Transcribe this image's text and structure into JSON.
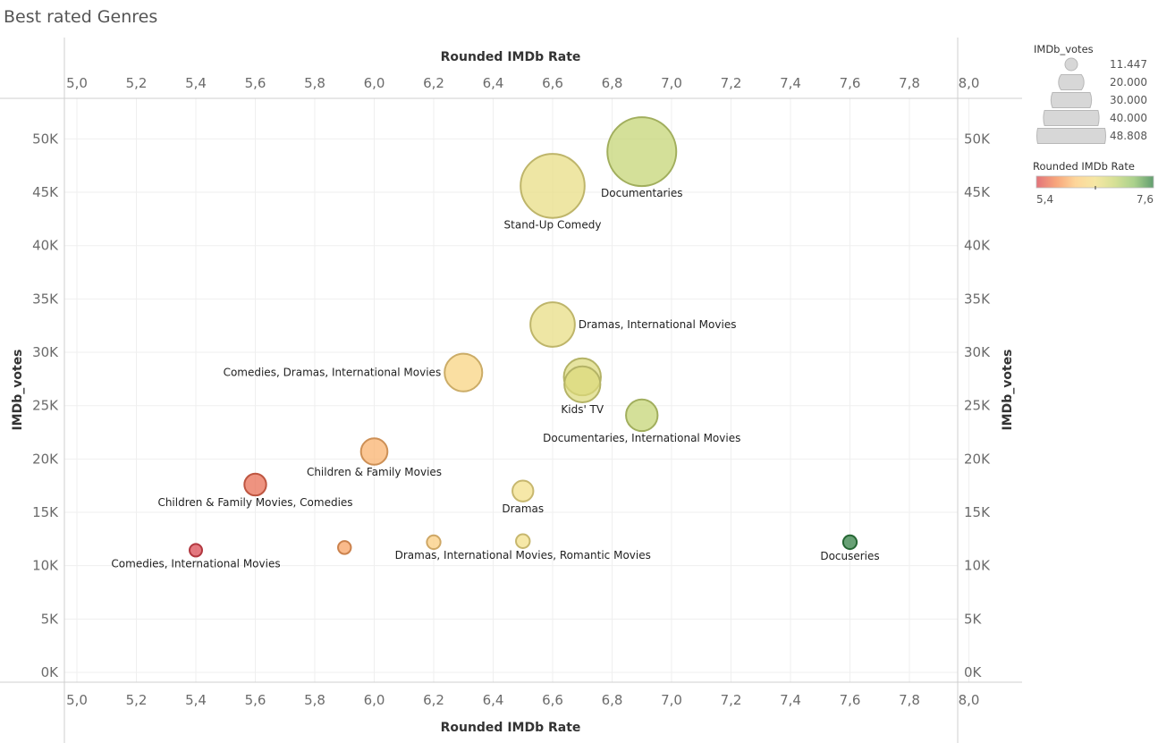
{
  "title": "Best rated Genres",
  "chart_data": {
    "type": "scatter",
    "title": "Best rated Genres",
    "xlabel": "Rounded IMDb Rate",
    "ylabel": "IMDb_votes",
    "xlim": [
      5.0,
      8.0
    ],
    "ylim": [
      0,
      55000
    ],
    "x_ticks": [
      "5,0",
      "5,2",
      "5,4",
      "5,6",
      "5,8",
      "6,0",
      "6,2",
      "6,4",
      "6,6",
      "6,8",
      "7,0",
      "7,2",
      "7,4",
      "7,6",
      "7,8",
      "8,0"
    ],
    "x_tick_values": [
      5.0,
      5.2,
      5.4,
      5.6,
      5.8,
      6.0,
      6.2,
      6.4,
      6.6,
      6.8,
      7.0,
      7.2,
      7.4,
      7.6,
      7.8,
      8.0
    ],
    "y_ticks": [
      "0K",
      "5K",
      "10K",
      "15K",
      "20K",
      "25K",
      "30K",
      "35K",
      "40K",
      "45K",
      "50K"
    ],
    "y_tick_values": [
      0,
      5000,
      10000,
      15000,
      20000,
      25000,
      30000,
      35000,
      40000,
      45000,
      50000
    ],
    "points": [
      {
        "label": "Documentaries",
        "rate": 6.9,
        "votes": 48808
      },
      {
        "label": "Stand-Up Comedy",
        "rate": 6.6,
        "votes": 45600
      },
      {
        "label": "Dramas, International Movies",
        "rate": 6.6,
        "votes": 32600
      },
      {
        "label": "Comedies, Dramas, International Movies",
        "rate": 6.3,
        "votes": 28100
      },
      {
        "label": "",
        "rate": 6.7,
        "votes": 27700
      },
      {
        "label": "Kids' TV",
        "rate": 6.7,
        "votes": 27000
      },
      {
        "label": "Documentaries, International Movies",
        "rate": 6.9,
        "votes": 24100
      },
      {
        "label": "Children & Family Movies",
        "rate": 6.0,
        "votes": 20700
      },
      {
        "label": "Children & Family Movies, Comedies",
        "rate": 5.6,
        "votes": 17600
      },
      {
        "label": "Dramas",
        "rate": 6.5,
        "votes": 17000
      },
      {
        "label": "Comedies, International Movies",
        "rate": 5.4,
        "votes": 11447
      },
      {
        "label": "",
        "rate": 5.9,
        "votes": 11700
      },
      {
        "label": "",
        "rate": 6.2,
        "votes": 12200
      },
      {
        "label": "Dramas, International Movies, Romantic Movies",
        "rate": 6.5,
        "votes": 12300
      },
      {
        "label": "Docuseries",
        "rate": 7.6,
        "votes": 12200
      }
    ],
    "size_legend": {
      "title": "IMDb_votes",
      "values": [
        11447,
        20000,
        30000,
        40000,
        48808
      ],
      "labels": [
        "11.447",
        "20.000",
        "30.000",
        "40.000",
        "48.808"
      ]
    },
    "color_legend": {
      "title": "Rounded IMDb Rate",
      "min_label": "5,4",
      "max_label": "7,6",
      "min": 5.4,
      "max": 7.6,
      "colors": [
        "#d9444e",
        "#f5874f",
        "#fdc878",
        "#f3df86",
        "#c9d673",
        "#8fc266",
        "#2e7d40"
      ]
    }
  }
}
